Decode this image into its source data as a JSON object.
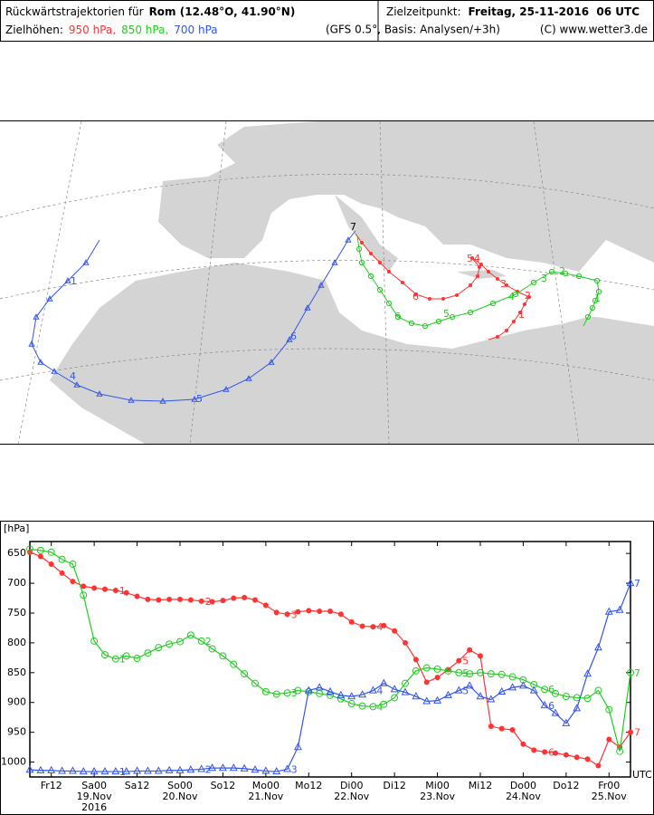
{
  "header": {
    "title_prefix": "Rückwärtstrajektorien für",
    "title_place": "Rom (12.48°O, 41.90°N)",
    "target_label": "Zielzeitpunkt:",
    "target_time": "Freitag, 25-11-2016  06 UTC",
    "levels_label": "Zielhöhen:",
    "model_note": "(GFS 0.5°, Basis: Analysen/+3h)",
    "copyright": "(C) www.wetter3.de"
  },
  "chart_data": {
    "type": "line",
    "y_unit_label": "[hPa]",
    "y_inverted": true,
    "ylim": [
      630,
      1025
    ],
    "yticks": [
      650,
      700,
      750,
      800,
      850,
      900,
      950,
      1000
    ],
    "categories": [
      null,
      null,
      "Fr12",
      null,
      null,
      null,
      "Sa00",
      null,
      null,
      null,
      "Sa12",
      null,
      null,
      null,
      "So00",
      null,
      null,
      null,
      "So12",
      null,
      null,
      null,
      "Mo00",
      null,
      null,
      null,
      "Mo12",
      null,
      null,
      null,
      "Di00",
      null,
      null,
      null,
      "Di12",
      null,
      null,
      null,
      "Mi00",
      null,
      null,
      null,
      "Mi12",
      null,
      null,
      null,
      "Do00",
      null,
      null,
      null,
      "Do12",
      null,
      null,
      null,
      "Fr00",
      null,
      null
    ],
    "date_labels": [
      "19.Nov",
      "20.Nov",
      "21.Nov",
      "22.Nov",
      "23.Nov",
      "24.Nov",
      "25.Nov"
    ],
    "year_label": "2016",
    "x_unit": "UTC",
    "day_labels": [
      1,
      2,
      3,
      4,
      5,
      6,
      7
    ],
    "series": [
      {
        "name": "950 hPa,",
        "color": "#ff3333",
        "marker": "filled-circle",
        "values": [
          648,
          655,
          668,
          683,
          697,
          705,
          708,
          710,
          712,
          716,
          722,
          727,
          728,
          727,
          727,
          728,
          730,
          731,
          729,
          725,
          724,
          728,
          737,
          749,
          752,
          748,
          746,
          747,
          747,
          752,
          765,
          772,
          773,
          771,
          780,
          800,
          828,
          866,
          858,
          845,
          830,
          812,
          822,
          940,
          944,
          946,
          970,
          980,
          983,
          985,
          988,
          992,
          995,
          1006,
          962,
          975,
          950
        ]
      },
      {
        "name": "850 hPa,",
        "color": "#22cc22",
        "marker": "open-circle",
        "values": [
          643,
          645,
          648,
          660,
          668,
          720,
          797,
          820,
          827,
          822,
          826,
          817,
          808,
          802,
          798,
          787,
          797,
          810,
          822,
          836,
          852,
          868,
          882,
          886,
          884,
          880,
          882,
          885,
          888,
          894,
          902,
          906,
          907,
          903,
          892,
          868,
          847,
          842,
          844,
          847,
          850,
          852,
          850,
          852,
          853,
          857,
          862,
          870,
          878,
          885,
          890,
          892,
          893,
          880,
          912,
          982,
          850
        ]
      },
      {
        "name": "700 hPa",
        "color": "#3355ee",
        "marker": "triangle",
        "values": [
          1013,
          1014,
          1014,
          1015,
          1015,
          1016,
          1016,
          1016,
          1016,
          1016,
          1015,
          1015,
          1015,
          1014,
          1014,
          1013,
          1012,
          1010,
          1010,
          1010,
          1011,
          1013,
          1015,
          1016,
          1012,
          975,
          880,
          875,
          882,
          888,
          890,
          887,
          880,
          868,
          878,
          883,
          890,
          898,
          897,
          888,
          880,
          872,
          890,
          895,
          882,
          875,
          872,
          880,
          905,
          918,
          935,
          910,
          852,
          808,
          748,
          745,
          700
        ]
      }
    ]
  }
}
